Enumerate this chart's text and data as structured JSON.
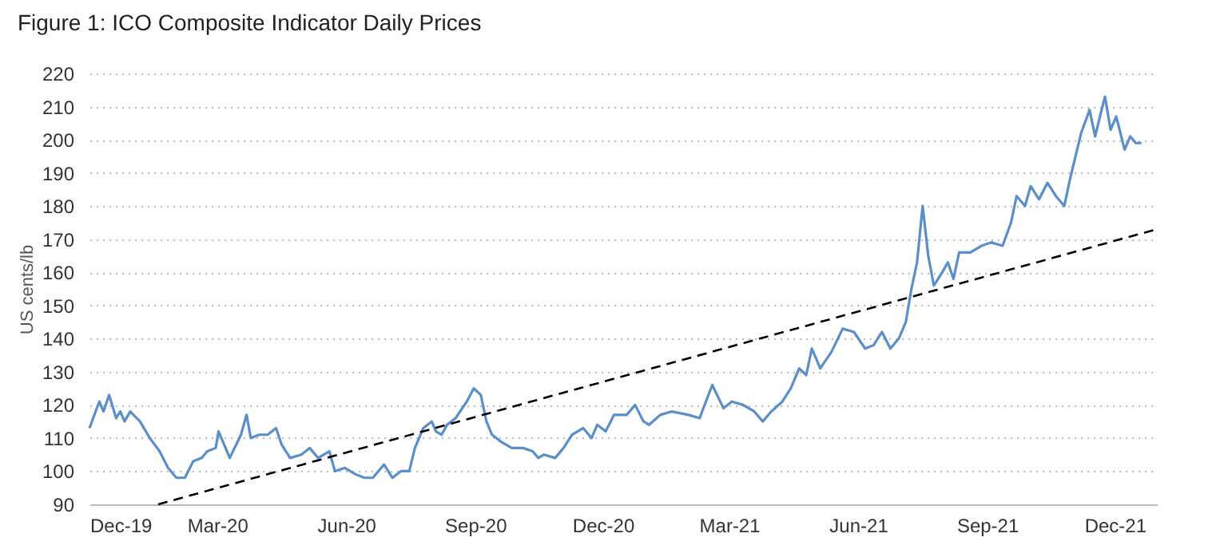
{
  "chart_data": {
    "type": "line",
    "title": "Figure 1: ICO Composite Indicator Daily Prices",
    "ylabel": "US cents/lb",
    "xlim": [
      "2019-12-01",
      "2021-12-31"
    ],
    "ylim": [
      90,
      220
    ],
    "yticks": [
      90,
      100,
      110,
      120,
      130,
      140,
      150,
      160,
      170,
      180,
      190,
      200,
      210,
      220
    ],
    "xticks": [
      {
        "value": "2019-12-01",
        "label": "Dec-19"
      },
      {
        "value": "2020-03-01",
        "label": "Mar-20"
      },
      {
        "value": "2020-06-01",
        "label": "Jun-20"
      },
      {
        "value": "2020-09-01",
        "label": "Sep-20"
      },
      {
        "value": "2020-12-01",
        "label": "Dec-20"
      },
      {
        "value": "2021-03-01",
        "label": "Mar-21"
      },
      {
        "value": "2021-06-01",
        "label": "Jun-21"
      },
      {
        "value": "2021-09-01",
        "label": "Sep-21"
      },
      {
        "value": "2021-12-01",
        "label": "Dec-21"
      }
    ],
    "grid": "y",
    "line_style": "solid",
    "marker": "none",
    "series": [
      {
        "color": "#5b8fc9",
        "x": [
          "2019-12-01",
          "2019-12-08",
          "2019-12-11",
          "2019-12-15",
          "2019-12-20",
          "2019-12-23",
          "2019-12-26",
          "2019-12-30",
          "2020-01-06",
          "2020-01-13",
          "2020-01-20",
          "2020-01-26",
          "2020-02-01",
          "2020-02-07",
          "2020-02-13",
          "2020-02-19",
          "2020-02-23",
          "2020-02-29",
          "2020-03-02",
          "2020-03-06",
          "2020-03-10",
          "2020-03-18",
          "2020-03-22",
          "2020-03-25",
          "2020-03-31",
          "2020-04-06",
          "2020-04-12",
          "2020-04-16",
          "2020-04-22",
          "2020-04-30",
          "2020-05-06",
          "2020-05-12",
          "2020-05-20",
          "2020-05-24",
          "2020-05-31",
          "2020-06-08",
          "2020-06-14",
          "2020-06-20",
          "2020-06-28",
          "2020-07-04",
          "2020-07-10",
          "2020-07-16",
          "2020-07-20",
          "2020-07-26",
          "2020-08-01",
          "2020-08-04",
          "2020-08-08",
          "2020-08-12",
          "2020-08-18",
          "2020-08-26",
          "2020-08-31",
          "2020-09-05",
          "2020-09-09",
          "2020-09-13",
          "2020-09-19",
          "2020-09-27",
          "2020-10-05",
          "2020-10-12",
          "2020-10-16",
          "2020-10-20",
          "2020-10-28",
          "2020-11-03",
          "2020-11-09",
          "2020-11-17",
          "2020-11-23",
          "2020-11-27",
          "2020-12-03",
          "2020-12-09",
          "2020-12-18",
          "2020-12-24",
          "2020-12-30",
          "2021-01-03",
          "2021-01-11",
          "2021-01-19",
          "2021-01-31",
          "2021-02-08",
          "2021-02-17",
          "2021-02-25",
          "2021-03-03",
          "2021-03-11",
          "2021-03-19",
          "2021-03-25",
          "2021-03-31",
          "2021-04-08",
          "2021-04-14",
          "2021-04-20",
          "2021-04-25",
          "2021-04-29",
          "2021-05-05",
          "2021-05-13",
          "2021-05-21",
          "2021-05-29",
          "2021-06-06",
          "2021-06-12",
          "2021-06-18",
          "2021-06-24",
          "2021-06-30",
          "2021-07-05",
          "2021-07-09",
          "2021-07-13",
          "2021-07-17",
          "2021-07-21",
          "2021-07-25",
          "2021-07-31",
          "2021-08-04",
          "2021-08-08",
          "2021-08-12",
          "2021-08-20",
          "2021-08-28",
          "2021-09-04",
          "2021-09-12",
          "2021-09-18",
          "2021-09-22",
          "2021-09-28",
          "2021-10-02",
          "2021-10-08",
          "2021-10-14",
          "2021-10-20",
          "2021-10-26",
          "2021-10-30",
          "2021-11-03",
          "2021-11-07",
          "2021-11-13",
          "2021-11-17",
          "2021-11-21",
          "2021-11-24",
          "2021-11-28",
          "2021-12-02",
          "2021-12-08",
          "2021-12-12",
          "2021-12-16",
          "2021-12-20"
        ],
        "values": [
          113,
          121,
          118,
          123,
          116,
          118,
          115,
          118,
          115,
          110,
          106,
          101,
          98,
          98,
          103,
          104,
          106,
          107,
          112,
          108,
          104,
          111,
          117,
          110,
          111,
          111,
          113,
          108,
          104,
          105,
          107,
          104,
          106,
          100,
          101,
          99,
          98,
          98,
          102,
          98,
          100,
          100,
          107,
          113,
          115,
          112,
          111,
          114,
          116,
          121,
          125,
          123,
          115,
          111,
          109,
          107,
          107,
          106,
          104,
          105,
          104,
          107,
          111,
          113,
          110,
          114,
          112,
          117,
          117,
          120,
          115,
          114,
          117,
          118,
          117,
          116,
          126,
          119,
          121,
          120,
          118,
          115,
          118,
          121,
          125,
          131,
          129,
          137,
          131,
          136,
          143,
          142,
          137,
          138,
          142,
          137,
          140,
          145,
          155,
          163,
          180,
          165,
          156,
          160,
          163,
          158,
          166,
          166,
          168,
          169,
          168,
          175,
          183,
          180,
          186,
          182,
          187,
          183,
          180,
          188,
          195,
          202,
          209,
          201,
          208,
          213,
          203,
          207,
          197,
          201,
          199,
          199
        ]
      },
      {
        "color": "#000000",
        "line_style": "dashed",
        "x": [
          "2020-01-19",
          "2021-12-31"
        ],
        "values": [
          90,
          173
        ]
      }
    ]
  }
}
